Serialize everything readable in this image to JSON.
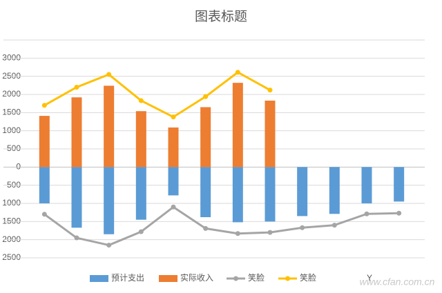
{
  "chart_data": {
    "type": "bar",
    "title": "图表标题",
    "categories": [
      null,
      null,
      null,
      null,
      null,
      null,
      null,
      null,
      null,
      null,
      null,
      null
    ],
    "series": [
      {
        "name": "预计支出",
        "type": "bar",
        "color": "#5b9bd5",
        "values": [
          -1000,
          -1670,
          -1850,
          -1450,
          -780,
          -1380,
          -1520,
          -1500,
          -1350,
          -1290,
          -1000,
          -950
        ]
      },
      {
        "name": "实际收入",
        "type": "bar",
        "color": "#ed7d31",
        "values": [
          1410,
          1920,
          2240,
          1540,
          1090,
          1650,
          2320,
          1830,
          null,
          null,
          null,
          null
        ]
      },
      {
        "name": "笑脸",
        "type": "line",
        "color": "#a5a5a5",
        "values": [
          -1300,
          -1950,
          -2150,
          -1780,
          -1100,
          -1690,
          -1830,
          -1800,
          -1670,
          -1600,
          -1290,
          -1270
        ]
      },
      {
        "name": "笑脸",
        "type": "line",
        "color": "#ffc000",
        "values": [
          1700,
          2200,
          2550,
          1830,
          1380,
          1940,
          2610,
          2120,
          null,
          null,
          null,
          null
        ]
      },
      {
        "name": "Y",
        "type": "line",
        "values": [
          null,
          null,
          null,
          null,
          null,
          null,
          null,
          null,
          null,
          null,
          null,
          null
        ]
      }
    ],
    "ylim": [
      -2500,
      3500
    ],
    "yticks": [
      {
        "value": -2500,
        "label": "2500"
      },
      {
        "value": -2000,
        "label": "2000"
      },
      {
        "value": -1500,
        "label": "1500"
      },
      {
        "value": -1000,
        "label": "1000"
      },
      {
        "value": -500,
        "label": "500"
      },
      0,
      500,
      1000,
      1500,
      2000,
      2500,
      3000
    ],
    "grid": true,
    "legend": "bottom",
    "watermark": "www.cfan.com.cn"
  }
}
